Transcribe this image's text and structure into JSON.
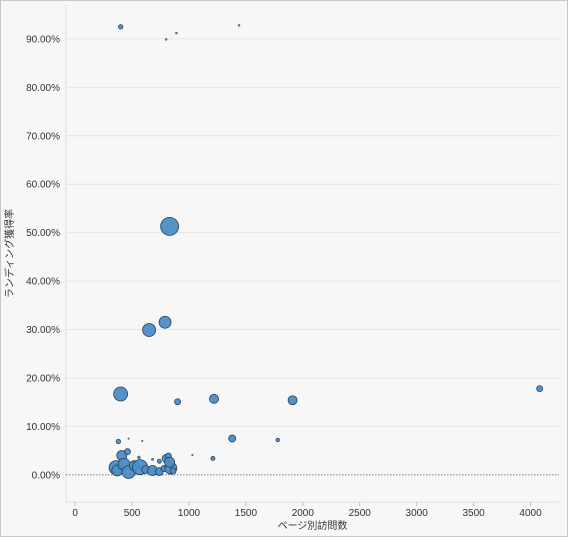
{
  "chart_data": {
    "type": "scatter",
    "xlabel": "ページ別訪問数",
    "ylabel": "ランディング獲得率",
    "xlim": [
      -80,
      4250
    ],
    "ylim": [
      -5.6,
      97.0
    ],
    "x_ticks": [
      "0",
      "500",
      "1000",
      "1500",
      "2000",
      "2500",
      "3000",
      "3500",
      "4000"
    ],
    "x_tick_values": [
      0,
      500,
      1000,
      1500,
      2000,
      2500,
      3000,
      3500,
      4000
    ],
    "y_ticks": [
      "0.00%",
      "10.00%",
      "20.00%",
      "30.00%",
      "40.00%",
      "50.00%",
      "60.00%",
      "70.00%",
      "80.00%",
      "90.00%"
    ],
    "y_tick_values": [
      0,
      10,
      20,
      30,
      40,
      50,
      60,
      70,
      80,
      90
    ],
    "grid": true,
    "colors": {
      "point_fill": "#4a8dc4",
      "point_stroke": "#2a3f55",
      "zero_line": "#555555",
      "grid": "#e4e4e4"
    },
    "points": [
      {
        "x": 400,
        "y": 92.5,
        "r": 2.2
      },
      {
        "x": 800,
        "y": 89.9,
        "r": 1.0
      },
      {
        "x": 890,
        "y": 91.2,
        "r": 1.0
      },
      {
        "x": 1440,
        "y": 92.8,
        "r": 1.0
      },
      {
        "x": 830,
        "y": 51.3,
        "r": 9.0
      },
      {
        "x": 650,
        "y": 29.9,
        "r": 6.5
      },
      {
        "x": 790,
        "y": 31.5,
        "r": 6.0
      },
      {
        "x": 400,
        "y": 16.7,
        "r": 7.0
      },
      {
        "x": 900,
        "y": 15.1,
        "r": 3.0
      },
      {
        "x": 1220,
        "y": 15.7,
        "r": 4.5
      },
      {
        "x": 1910,
        "y": 15.4,
        "r": 4.5
      },
      {
        "x": 4080,
        "y": 17.8,
        "r": 3.0
      },
      {
        "x": 1380,
        "y": 7.5,
        "r": 3.5
      },
      {
        "x": 1780,
        "y": 7.2,
        "r": 1.7
      },
      {
        "x": 380,
        "y": 6.9,
        "r": 2.2
      },
      {
        "x": 470,
        "y": 7.5,
        "r": 0.8
      },
      {
        "x": 590,
        "y": 7.0,
        "r": 0.8
      },
      {
        "x": 1030,
        "y": 4.1,
        "r": 0.8
      },
      {
        "x": 1210,
        "y": 3.4,
        "r": 2.0
      },
      {
        "x": 410,
        "y": 4.0,
        "r": 5.0
      },
      {
        "x": 460,
        "y": 4.8,
        "r": 3.0
      },
      {
        "x": 560,
        "y": 3.6,
        "r": 1.5
      },
      {
        "x": 680,
        "y": 3.2,
        "r": 1.2
      },
      {
        "x": 800,
        "y": 3.4,
        "r": 4.0
      },
      {
        "x": 820,
        "y": 3.9,
        "r": 3.0
      },
      {
        "x": 740,
        "y": 2.8,
        "r": 2.0
      },
      {
        "x": 360,
        "y": 1.5,
        "r": 7.0
      },
      {
        "x": 370,
        "y": 0.9,
        "r": 5.5
      },
      {
        "x": 430,
        "y": 2.2,
        "r": 6.0
      },
      {
        "x": 470,
        "y": 0.6,
        "r": 6.5
      },
      {
        "x": 520,
        "y": 1.9,
        "r": 5.0
      },
      {
        "x": 570,
        "y": 1.6,
        "r": 7.5
      },
      {
        "x": 620,
        "y": 1.1,
        "r": 4.0
      },
      {
        "x": 680,
        "y": 0.9,
        "r": 5.0
      },
      {
        "x": 740,
        "y": 0.7,
        "r": 4.0
      },
      {
        "x": 780,
        "y": 1.3,
        "r": 3.0
      },
      {
        "x": 840,
        "y": 1.4,
        "r": 6.0
      },
      {
        "x": 860,
        "y": 0.8,
        "r": 3.0
      },
      {
        "x": 830,
        "y": 2.6,
        "r": 5.0
      }
    ]
  }
}
